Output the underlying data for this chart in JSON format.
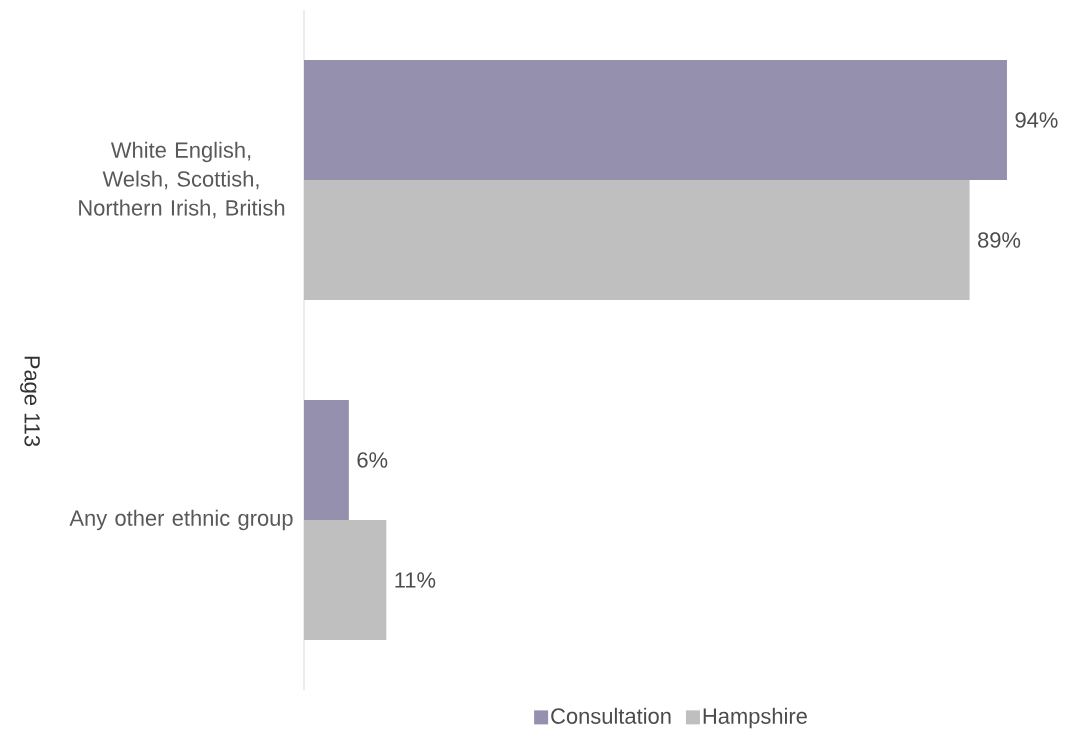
{
  "chart_data": {
    "type": "bar",
    "orientation": "horizontal",
    "categories": [
      "White English, Welsh, Scottish, Northern Irish, British",
      "Any other ethnic group"
    ],
    "series": [
      {
        "name": "Consultation",
        "color": "#9590ae",
        "values": [
          94,
          6
        ],
        "value_labels": [
          "94%",
          "6%"
        ]
      },
      {
        "name": "Hampshire",
        "color": "#bfbfbf",
        "values": [
          89,
          11
        ],
        "value_labels": [
          "89%",
          "11%"
        ]
      }
    ],
    "legend": "bottom",
    "annotations": [
      "Page 113"
    ]
  }
}
